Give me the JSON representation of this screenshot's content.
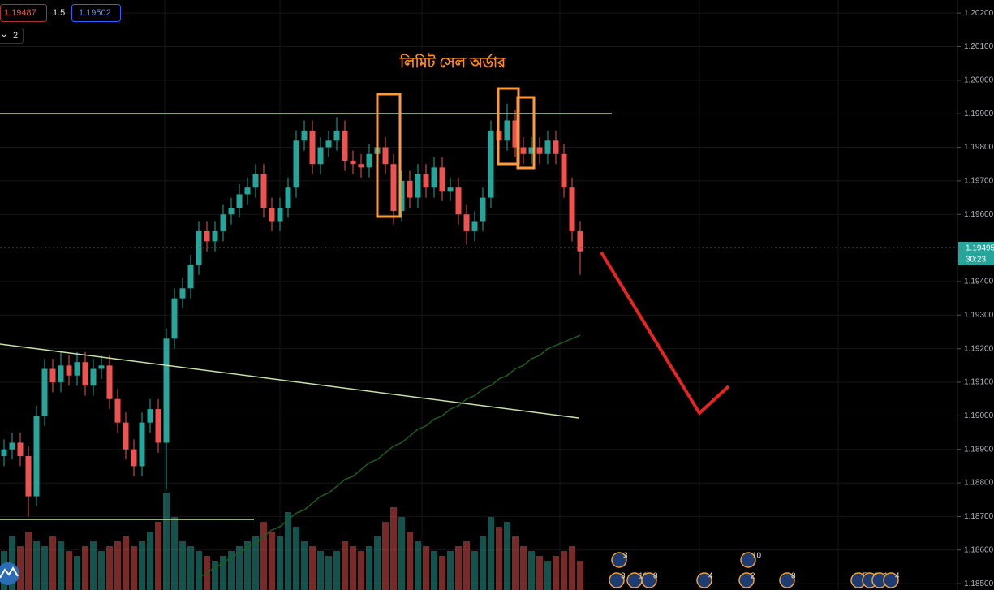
{
  "chart_data": {
    "type": "candlestick",
    "annotation": "লিমিট সেল অর্ডার",
    "ylim": [
      1.18481,
      1.20239
    ],
    "yticks": [
      {
        "value": 1.202,
        "label": "1.20200"
      },
      {
        "value": 1.201,
        "label": "1.20100"
      },
      {
        "value": 1.2,
        "label": "1.20000"
      },
      {
        "value": 1.199,
        "label": "1.19900"
      },
      {
        "value": 1.198,
        "label": "1.19800"
      },
      {
        "value": 1.197,
        "label": "1.19700"
      },
      {
        "value": 1.196,
        "label": "1.19600"
      },
      {
        "value": 1.195,
        "label": "1.19500"
      },
      {
        "value": 1.194,
        "label": "1.19400"
      },
      {
        "value": 1.193,
        "label": "1.19300"
      },
      {
        "value": 1.192,
        "label": "1.19200"
      },
      {
        "value": 1.191,
        "label": "1.19100"
      },
      {
        "value": 1.19,
        "label": "1.19000"
      },
      {
        "value": 1.189,
        "label": "1.18900"
      },
      {
        "value": 1.188,
        "label": "1.18800"
      },
      {
        "value": 1.187,
        "label": "1.18700"
      },
      {
        "value": 1.186,
        "label": "1.18600"
      },
      {
        "value": 1.185,
        "label": "1.18500"
      }
    ],
    "up_color": "#26a69a",
    "down_color": "#ef5350",
    "ma_color": "#1b5e20",
    "open": [
      1.1888,
      1.189,
      1.1892,
      1.1888,
      1.1876,
      1.19,
      1.1914,
      1.191,
      1.1915,
      1.1912,
      1.1916,
      1.1909,
      1.1914,
      1.1915,
      1.1905,
      1.1898,
      1.189,
      1.1885,
      1.1898,
      1.1902,
      1.1892,
      1.1923,
      1.1935,
      1.1938,
      1.1945,
      1.1955,
      1.1952,
      1.1955,
      1.196,
      1.1962,
      1.1966,
      1.1968,
      1.1972,
      1.1962,
      1.1958,
      1.1962,
      1.1968,
      1.1982,
      1.1985,
      1.1975,
      1.198,
      1.1982,
      1.1985,
      1.1976,
      1.1975,
      1.1974,
      1.1978,
      1.198,
      1.1975,
      1.1961,
      1.197,
      1.1965,
      1.1972,
      1.1968,
      1.1974,
      1.1967,
      1.1968,
      1.196,
      1.1955,
      1.1958,
      1.1965,
      1.1985,
      1.1982,
      1.1988,
      1.198,
      1.1978,
      1.198,
      1.1978,
      1.1982,
      1.1978,
      1.1968,
      1.1955
    ],
    "high": [
      1.1893,
      1.1895,
      1.1895,
      1.1891,
      1.1903,
      1.1917,
      1.1917,
      1.1919,
      1.1918,
      1.1919,
      1.1919,
      1.1917,
      1.1918,
      1.1918,
      1.1908,
      1.1901,
      1.1893,
      1.1901,
      1.1905,
      1.1905,
      1.1926,
      1.1938,
      1.1941,
      1.1948,
      1.1958,
      1.1958,
      1.1958,
      1.1963,
      1.1965,
      1.1969,
      1.1971,
      1.1975,
      1.1975,
      1.1965,
      1.1965,
      1.1971,
      1.1985,
      1.1988,
      1.1988,
      1.1983,
      1.1985,
      1.1989,
      1.1988,
      1.1979,
      1.1978,
      1.1981,
      1.1989,
      1.1983,
      1.1978,
      1.1973,
      1.1973,
      1.1975,
      1.1975,
      1.1977,
      1.1977,
      1.1971,
      1.1971,
      1.1963,
      1.1961,
      1.1968,
      1.1988,
      1.1988,
      1.1993,
      1.1991,
      1.1983,
      1.1983,
      1.1983,
      1.1985,
      1.1985,
      1.1981,
      1.1971,
      1.1958
    ],
    "low": [
      1.1885,
      1.1887,
      1.1885,
      1.187,
      1.1873,
      1.1897,
      1.1907,
      1.1907,
      1.1909,
      1.1909,
      1.1906,
      1.1906,
      1.1911,
      1.1902,
      1.1895,
      1.1887,
      1.1882,
      1.1882,
      1.1895,
      1.1889,
      1.1878,
      1.192,
      1.1932,
      1.1935,
      1.1942,
      1.1949,
      1.1949,
      1.1952,
      1.1957,
      1.1959,
      1.1963,
      1.1965,
      1.1959,
      1.1955,
      1.1955,
      1.1959,
      1.1965,
      1.1979,
      1.1972,
      1.1972,
      1.1977,
      1.1979,
      1.1973,
      1.1972,
      1.1971,
      1.1971,
      1.1975,
      1.1972,
      1.1957,
      1.1958,
      1.1962,
      1.1962,
      1.1965,
      1.1965,
      1.1964,
      1.1964,
      1.1957,
      1.1951,
      1.1952,
      1.1955,
      1.1962,
      1.1979,
      1.1979,
      1.1977,
      1.1975,
      1.1975,
      1.1975,
      1.1975,
      1.1975,
      1.1965,
      1.1952,
      1.1942
    ],
    "close": [
      1.189,
      1.1892,
      1.1888,
      1.1876,
      1.19,
      1.1914,
      1.191,
      1.1915,
      1.1912,
      1.1916,
      1.1909,
      1.1914,
      1.1915,
      1.1905,
      1.1898,
      1.189,
      1.1885,
      1.1898,
      1.1902,
      1.1892,
      1.1923,
      1.1935,
      1.1938,
      1.1945,
      1.1955,
      1.1952,
      1.1955,
      1.196,
      1.1962,
      1.1966,
      1.1968,
      1.1972,
      1.1962,
      1.1958,
      1.1962,
      1.1968,
      1.1982,
      1.1985,
      1.1975,
      1.198,
      1.1982,
      1.1985,
      1.1976,
      1.1975,
      1.1974,
      1.1978,
      1.198,
      1.1975,
      1.1961,
      1.197,
      1.1965,
      1.1972,
      1.1968,
      1.1974,
      1.1967,
      1.1968,
      1.196,
      1.1955,
      1.1958,
      1.1965,
      1.1985,
      1.1982,
      1.1988,
      1.198,
      1.1978,
      1.198,
      1.1978,
      1.1982,
      1.1978,
      1.1968,
      1.1955,
      1.1949
    ],
    "volume": [
      40,
      55,
      45,
      60,
      50,
      45,
      55,
      50,
      40,
      35,
      45,
      50,
      40,
      45,
      50,
      55,
      45,
      50,
      60,
      70,
      100,
      75,
      50,
      45,
      40,
      35,
      30,
      35,
      40,
      45,
      50,
      55,
      70,
      60,
      55,
      80,
      65,
      50,
      45,
      40,
      35,
      40,
      50,
      45,
      40,
      45,
      55,
      70,
      85,
      75,
      60,
      50,
      45,
      40,
      35,
      40,
      45,
      50,
      40,
      55,
      75,
      65,
      70,
      55,
      45,
      40,
      35,
      30,
      35,
      40,
      45,
      30
    ],
    "vlim": [
      0,
      100
    ],
    "ma": [
      null,
      null,
      null,
      null,
      null,
      null,
      null,
      null,
      null,
      null,
      null,
      null,
      null,
      null,
      null,
      null,
      null,
      null,
      null,
      null,
      null,
      null,
      null,
      null,
      1.1852,
      1.1853,
      1.1855,
      1.1856,
      1.1858,
      1.1859,
      1.1861,
      1.1862,
      1.1864,
      1.1866,
      1.1867,
      1.1869,
      1.1871,
      1.1872,
      1.1874,
      1.1876,
      1.1877,
      1.1879,
      1.1881,
      1.1882,
      1.1884,
      1.1886,
      1.1887,
      1.1889,
      1.1891,
      1.1892,
      1.1894,
      1.1896,
      1.1897,
      1.1899,
      1.19,
      1.1902,
      1.1903,
      1.1905,
      1.1906,
      1.1908,
      1.1909,
      1.1911,
      1.1912,
      1.1914,
      1.1915,
      1.1917,
      1.1918,
      1.192,
      1.1921,
      1.1922,
      1.1923,
      1.1924
    ],
    "current_price": {
      "label": "1.19495",
      "countdown": "30:23"
    },
    "header": {
      "bid": "1.19487",
      "spread": "1.5",
      "ask": "1.19502",
      "indicators": "2"
    },
    "events": [
      {
        "label": "3"
      },
      {
        "label": "10"
      },
      {
        "label": "3"
      },
      {
        "label": "10"
      },
      {
        "label": "8"
      },
      {
        "label": "4"
      },
      {
        "label": "2"
      },
      {
        "label": "8"
      },
      {
        "label": "5"
      },
      {
        "label": "0"
      },
      {
        "label": "14"
      },
      {
        "label": "4"
      }
    ]
  }
}
